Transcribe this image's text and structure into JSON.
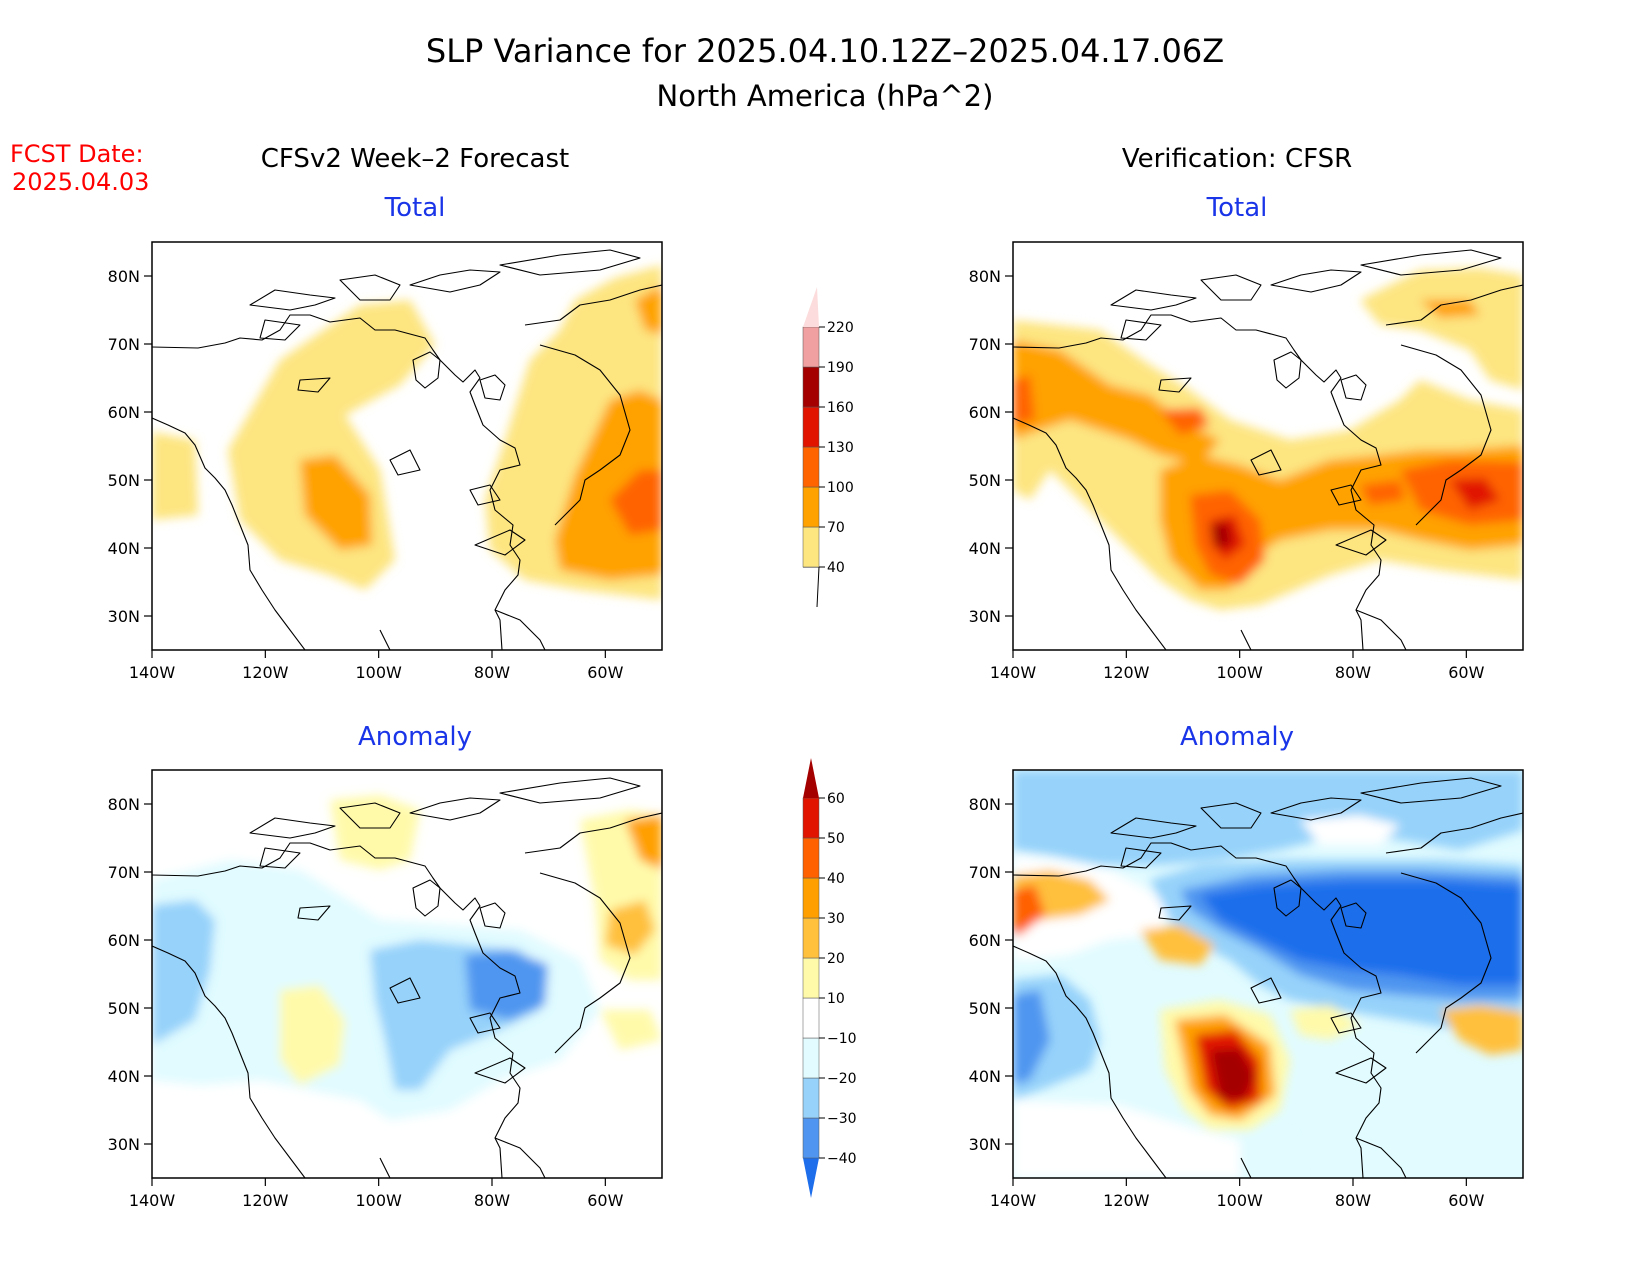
{
  "header": {
    "title_line1": "SLP Variance for 2025.04.10.12Z–2025.04.17.06Z",
    "title_line2": "North America (hPa^2)",
    "fcst_label": "FCST Date:",
    "fcst_date": "2025.04.03",
    "left_column_title": "CFSv2 Week–2 Forecast",
    "right_column_title": "Verification: CFSR"
  },
  "panels": {
    "forecast_total": {
      "subtitle": "Total"
    },
    "verification_total": {
      "subtitle": "Total"
    },
    "forecast_anomaly": {
      "subtitle": "Anomaly"
    },
    "verification_anomaly": {
      "subtitle": "Anomaly"
    }
  },
  "axes": {
    "lat_labels": [
      "80N",
      "70N",
      "60N",
      "50N",
      "40N",
      "30N"
    ],
    "lat_values": [
      80,
      70,
      60,
      50,
      40,
      30
    ],
    "lon_labels": [
      "140W",
      "120W",
      "100W",
      "80W",
      "60W"
    ],
    "lon_values": [
      -140,
      -120,
      -100,
      -80,
      -60
    ],
    "lon_range": [
      -140,
      -50
    ],
    "lat_range": [
      25,
      85
    ]
  },
  "colorbars": {
    "total": {
      "levels": [
        "40",
        "70",
        "100",
        "130",
        "160",
        "190",
        "220"
      ],
      "colors": [
        "#fde580",
        "#ffa200",
        "#ff6400",
        "#e11400",
        "#a50000",
        "#f0a0a0",
        "#fcdcdc"
      ]
    },
    "anomaly": {
      "levels": [
        "−40",
        "−30",
        "−20",
        "−10",
        "10",
        "20",
        "30",
        "40",
        "50",
        "60"
      ],
      "colors": [
        "#1e6eeb",
        "#5096f0",
        "#96d2fa",
        "#e1fbff",
        "#ffffff",
        "#fffaaa",
        "#ffc03c",
        "#ffa000",
        "#ff6000",
        "#e11400",
        "#a50000"
      ]
    }
  },
  "colors": {
    "title": "#000000",
    "fcst_text": "#ff0000",
    "subtitle": "#1a35e8"
  }
}
